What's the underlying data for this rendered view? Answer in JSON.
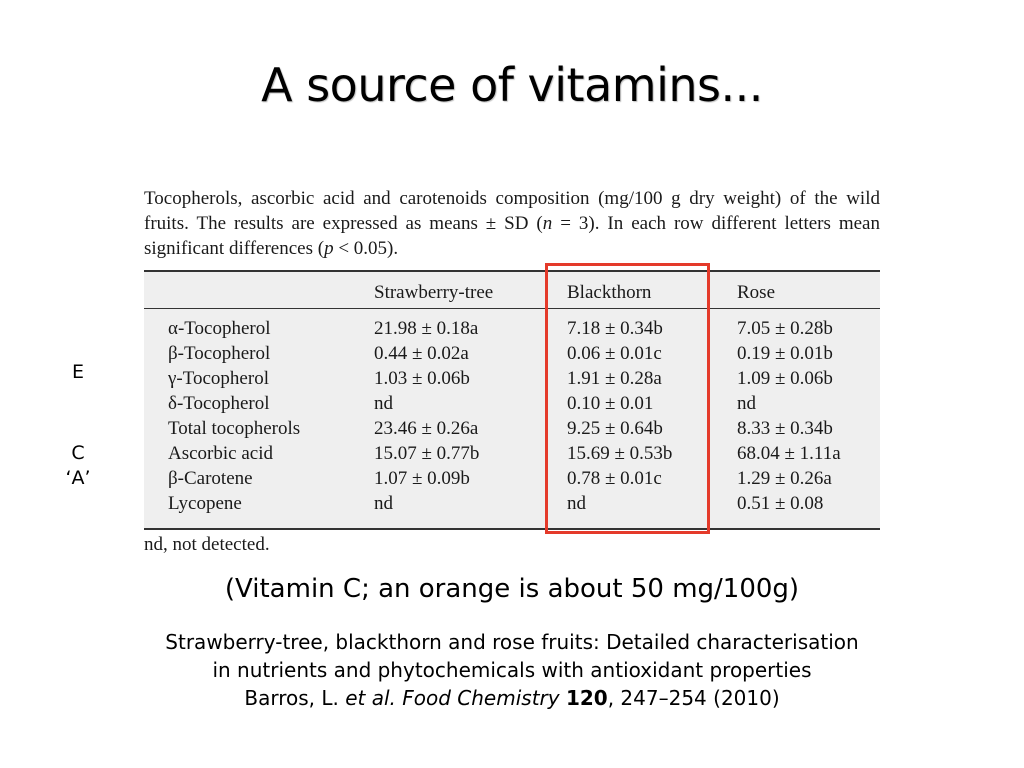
{
  "slide": {
    "title": "A source of vitamins...",
    "side_labels": [
      "E",
      "C",
      "‘A’"
    ],
    "note": "(Vitamin C; an orange is about 50 mg/100g)",
    "reference": {
      "line1": "Strawberry-tree, blackthorn and rose fruits: Detailed characterisation",
      "line2": "in nutrients and phytochemicals with antioxidant properties",
      "authors": "Barros, L.",
      "etal": "et al.",
      "journal": "Food Chemistry",
      "volume": "120",
      "pages_year": ", 247–254 (2010)"
    },
    "highlight_color": "#e43a2a"
  },
  "table": {
    "caption": {
      "part1": "Tocopherols, ascorbic acid and carotenoids composition (mg/100 g dry weight) of the wild fruits. The results are expressed as means ± SD (",
      "n": "n",
      "part2": " = 3). In each row different letters mean significant differences (",
      "p": "p",
      "part3": " < 0.05)."
    },
    "headers": [
      "",
      "Strawberry-tree",
      "Blackthorn",
      "Rose"
    ],
    "rows": [
      [
        "α-Tocopherol",
        "21.98 ± 0.18a",
        "7.18 ± 0.34b",
        "7.05 ± 0.28b"
      ],
      [
        "β-Tocopherol",
        "0.44 ± 0.02a",
        "0.06 ± 0.01c",
        "0.19 ± 0.01b"
      ],
      [
        "γ-Tocopherol",
        "1.03 ± 0.06b",
        "1.91 ± 0.28a",
        "1.09 ± 0.06b"
      ],
      [
        "δ-Tocopherol",
        "nd",
        "0.10 ± 0.01",
        "nd"
      ],
      [
        "Total tocopherols",
        "23.46 ± 0.26a",
        "9.25 ± 0.64b",
        "8.33 ± 0.34b"
      ],
      [
        "Ascorbic acid",
        "15.07 ± 0.77b",
        "15.69 ± 0.53b",
        "68.04 ± 1.11a"
      ],
      [
        "β-Carotene",
        "1.07 ± 0.09b",
        "0.78 ± 0.01c",
        "1.29 ± 0.26a"
      ],
      [
        "Lycopene",
        "nd",
        "nd",
        "0.51 ± 0.08"
      ]
    ],
    "footnote": "nd, not detected."
  }
}
